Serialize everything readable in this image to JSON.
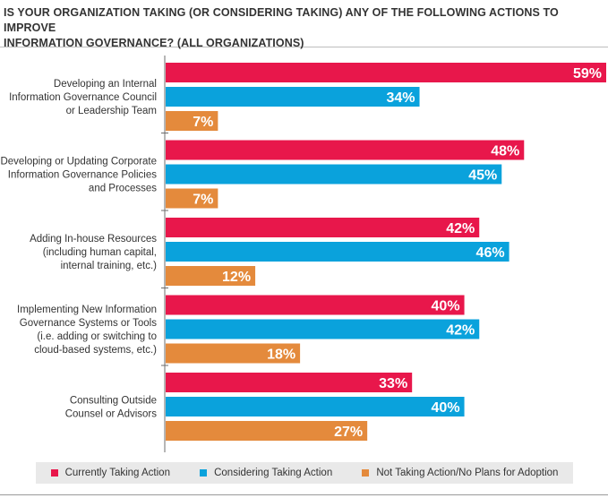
{
  "chart_data": {
    "type": "bar",
    "orientation": "horizontal",
    "title": "IS YOUR ORGANIZATION TAKING (OR CONSIDERING TAKING) ANY OF THE FOLLOWING ACTIONS TO IMPROVE INFORMATION GOVERNANCE? (ALL ORGANIZATIONS)",
    "title_lines": [
      "IS YOUR ORGANIZATION TAKING (OR CONSIDERING TAKING) ANY OF THE FOLLOWING ACTIONS TO IMPROVE",
      "INFORMATION GOVERNANCE? (ALL ORGANIZATIONS)"
    ],
    "categories": [
      [
        "Developing an Internal",
        "Information Governance Council",
        "or Leadership Team"
      ],
      [
        "Developing or Updating Corporate",
        "Information Governance Policies",
        "and Processes"
      ],
      [
        "Adding In-house Resources",
        "(including human capital,",
        "internal training, etc.)"
      ],
      [
        "Implementing New Information",
        "Governance Systems or Tools",
        "(i.e. adding or switching to",
        "cloud-based systems, etc.)"
      ],
      [
        "Consulting Outside",
        "Counsel or Advisors"
      ]
    ],
    "series": [
      {
        "name": "Currently Taking Action",
        "color": "#e8174b",
        "values": [
          59,
          48,
          42,
          40,
          33
        ],
        "labels": [
          "59%",
          "48%",
          "42%",
          "40%",
          "33%"
        ]
      },
      {
        "name": "Considering Taking Action",
        "color": "#0aa2dc",
        "values": [
          34,
          45,
          46,
          42,
          40
        ],
        "labels": [
          "34%",
          "45%",
          "46%",
          "42%",
          "40%"
        ]
      },
      {
        "name": "Not Taking Action/No Plans for Adoption",
        "color": "#e48a3c",
        "values": [
          7,
          7,
          12,
          18,
          27
        ],
        "labels": [
          "7%",
          "7%",
          "12%",
          "18%",
          "27%"
        ]
      }
    ],
    "xlim": [
      0,
      59
    ],
    "grid": false,
    "legend_position": "bottom"
  }
}
